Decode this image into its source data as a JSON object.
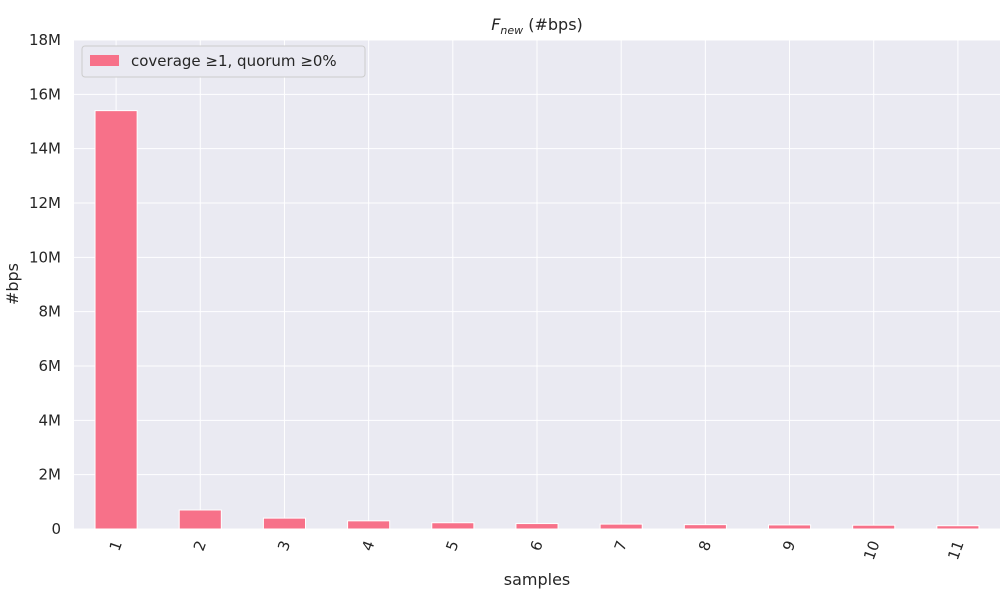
{
  "chart_data": {
    "type": "bar",
    "title": {
      "main": "F",
      "subscript": "new",
      "suffix": " (#bps)"
    },
    "xlabel": "samples",
    "ylabel": "#bps",
    "categories": [
      "1",
      "2",
      "3",
      "4",
      "5",
      "6",
      "7",
      "8",
      "9",
      "10",
      "11"
    ],
    "series": [
      {
        "name": "coverage  ≥1, quorum  ≥0%",
        "values": [
          15400000,
          700000,
          400000,
          300000,
          230000,
          200000,
          180000,
          160000,
          150000,
          140000,
          120000
        ],
        "color": "#f77189"
      }
    ],
    "ylim": [
      0,
      18000000
    ],
    "yticks": [
      0,
      2000000,
      4000000,
      6000000,
      8000000,
      10000000,
      12000000,
      14000000,
      16000000,
      18000000
    ],
    "ytick_labels": [
      "0",
      "2M",
      "4M",
      "6M",
      "8M",
      "10M",
      "12M",
      "14M",
      "16M",
      "18M"
    ],
    "x_tick_rotation": 70,
    "grid": true,
    "legend_position": "upper-left",
    "background_color": "#eaeaf2",
    "grid_color": "#ffffff"
  }
}
